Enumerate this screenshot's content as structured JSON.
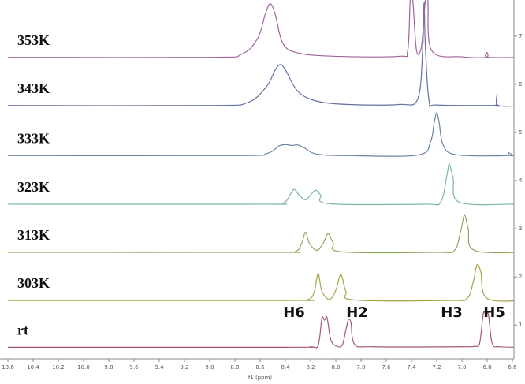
{
  "chart_data": {
    "type": "line",
    "xlabel": "f1 (ppm)",
    "xlim": [
      10.6,
      6.5
    ],
    "ylim": [
      0.3,
      7.75
    ],
    "xticks": [
      10.6,
      10.4,
      10.2,
      {
        "value": 10,
        "label": "10.0"
      },
      9.8,
      9.6,
      9.4,
      9.2,
      {
        "value": 9,
        "label": "9.0"
      },
      8.8,
      8.6,
      8.4,
      8.2,
      {
        "value": 8,
        "label": "8.0"
      },
      7.8,
      7.6,
      7.4,
      7.2,
      {
        "value": 7,
        "label": "7.0"
      },
      6.8,
      6.6
    ],
    "yticks": [
      1,
      2,
      3,
      4,
      5,
      6,
      7
    ],
    "annotations": [
      "H6",
      "H2",
      "H3",
      "H5"
    ],
    "series": [
      {
        "name": "rt",
        "color": "#a45a68",
        "x": [
          10.6,
          8.4,
          8.2,
          8.14,
          8.11,
          8.09,
          8.07,
          8.04,
          8.0,
          7.95,
          7.92,
          7.9,
          7.88,
          7.85,
          7.7,
          7.0,
          6.9,
          6.86,
          6.83,
          6.81,
          6.79,
          6.76,
          6.7,
          6.5
        ],
        "values": [
          0.54,
          0.54,
          0.55,
          0.58,
          1.14,
          1.1,
          1.16,
          0.7,
          0.57,
          0.58,
          0.9,
          1.11,
          1.05,
          0.6,
          0.55,
          0.55,
          0.56,
          0.62,
          1.25,
          1.2,
          1.22,
          0.62,
          0.55,
          0.54
        ]
      },
      {
        "name": "303K",
        "color": "#a8a448",
        "x": [
          10.6,
          8.4,
          8.22,
          8.17,
          8.14,
          8.11,
          8.05,
          8.0,
          7.96,
          7.92,
          7.85,
          7.1,
          6.96,
          6.91,
          6.88,
          6.85,
          6.8,
          6.5
        ],
        "values": [
          1.51,
          1.51,
          1.53,
          1.7,
          2.07,
          1.7,
          1.53,
          1.72,
          2.05,
          1.7,
          1.52,
          1.51,
          1.55,
          1.9,
          2.25,
          2.1,
          1.55,
          1.51
        ]
      },
      {
        "name": "313K",
        "color": "#8eaa62",
        "x": [
          10.6,
          8.5,
          8.32,
          8.27,
          8.24,
          8.21,
          8.15,
          8.1,
          8.06,
          8.02,
          7.95,
          7.2,
          7.06,
          7.01,
          6.98,
          6.95,
          6.9,
          6.5
        ],
        "values": [
          2.51,
          2.51,
          2.53,
          2.7,
          2.93,
          2.7,
          2.55,
          2.7,
          2.9,
          2.7,
          2.52,
          2.51,
          2.55,
          2.95,
          3.28,
          3.0,
          2.55,
          2.51
        ]
      },
      {
        "name": "323K",
        "color": "#7cb4a2",
        "x": [
          10.6,
          8.6,
          8.42,
          8.36,
          8.33,
          8.29,
          8.24,
          8.2,
          8.16,
          8.12,
          8.05,
          7.3,
          7.17,
          7.12,
          7.1,
          7.07,
          7.02,
          6.6,
          6.56,
          6.55,
          6.54,
          6.5
        ],
        "values": [
          3.51,
          3.51,
          3.53,
          3.72,
          3.82,
          3.7,
          3.6,
          3.7,
          3.8,
          3.7,
          3.52,
          3.51,
          3.55,
          4.1,
          4.34,
          4.05,
          3.55,
          3.51,
          3.51,
          3.56,
          3.51,
          3.51
        ]
      },
      {
        "name": "333K",
        "color": "#6884a4",
        "x": [
          10.6,
          8.8,
          8.55,
          8.45,
          8.4,
          8.35,
          8.3,
          8.25,
          8.15,
          7.9,
          7.35,
          7.25,
          7.22,
          7.2,
          7.18,
          7.15,
          7.05,
          6.64,
          6.63,
          6.62,
          6.5
        ],
        "values": [
          4.52,
          4.52,
          4.56,
          4.72,
          4.75,
          4.73,
          4.74,
          4.68,
          4.55,
          4.52,
          4.53,
          4.8,
          5.2,
          5.41,
          5.2,
          4.75,
          4.54,
          4.52,
          4.58,
          4.52,
          4.52
        ]
      },
      {
        "name": "343K",
        "color": "#6670a2",
        "x": [
          10.6,
          9.0,
          8.7,
          8.55,
          8.48,
          8.44,
          8.4,
          8.3,
          8.15,
          7.9,
          7.5,
          7.35,
          7.31,
          7.3,
          7.29,
          7.26,
          7.2,
          6.74,
          6.73,
          6.72,
          6.71,
          6.5
        ],
        "values": [
          5.56,
          5.56,
          5.62,
          5.95,
          6.3,
          6.41,
          6.3,
          5.85,
          5.65,
          5.58,
          5.58,
          5.7,
          6.8,
          7.7,
          6.8,
          5.65,
          5.57,
          5.56,
          5.56,
          5.8,
          5.56,
          5.56
        ]
      },
      {
        "name": "353K",
        "color": "#a0649a",
        "x": [
          10.6,
          9.0,
          8.75,
          8.62,
          8.56,
          8.52,
          8.48,
          8.42,
          8.3,
          8.0,
          7.5,
          7.43,
          7.41,
          7.39,
          7.36,
          7.32,
          7.29,
          7.27,
          7.24,
          7.0,
          6.81,
          6.8,
          6.79,
          6.5
        ],
        "values": [
          6.56,
          6.56,
          6.62,
          6.95,
          7.45,
          7.67,
          7.45,
          6.85,
          6.65,
          6.58,
          6.58,
          6.7,
          7.75,
          7.75,
          6.7,
          6.8,
          7.75,
          7.75,
          6.7,
          6.57,
          6.56,
          6.66,
          6.56,
          6.56
        ]
      }
    ]
  }
}
